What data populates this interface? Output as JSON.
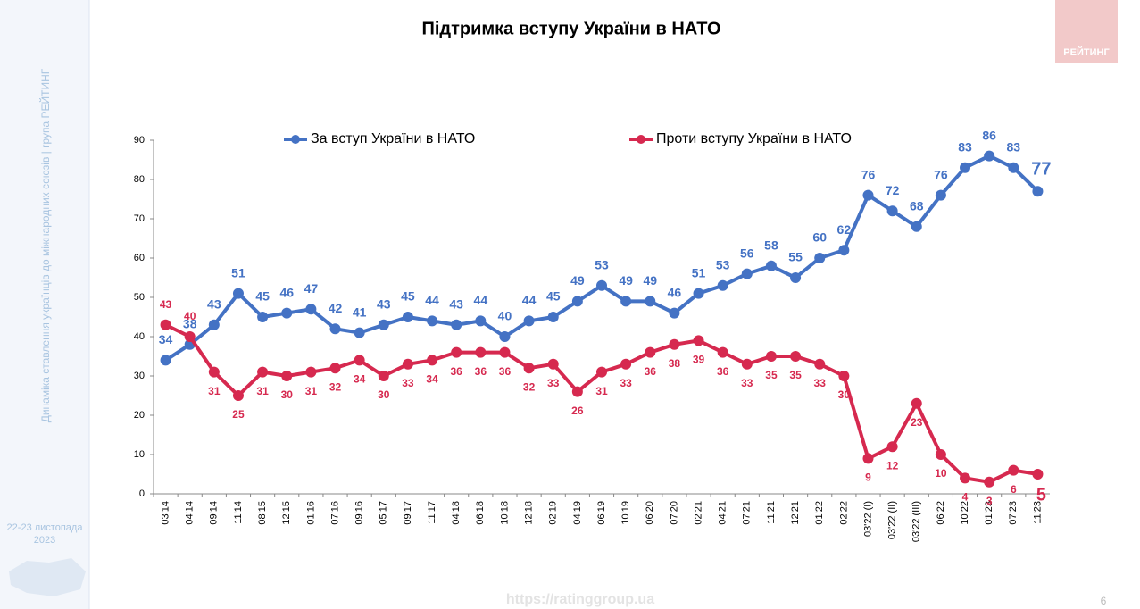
{
  "slide": {
    "side_text": "Динаміка ставлення українців до міжнародних союзів |  група РЕЙТИНГ",
    "date_lines": [
      "22-23 листопада",
      "2023"
    ],
    "logo": "РЕЙТИНГ",
    "url": "https://ratinggroup.ua",
    "page": "6"
  },
  "chart_data": {
    "type": "line",
    "title": "Підтримка вступу України в НАТО",
    "categories": [
      "03'14",
      "04'14",
      "09'14",
      "11'14",
      "08'15",
      "12'15",
      "01'16",
      "07'16",
      "09'16",
      "05'17",
      "09'17",
      "11'17",
      "04'18",
      "06'18",
      "10'18",
      "12'18",
      "02'19",
      "04'19",
      "06'19",
      "10'19",
      "06'20",
      "07'20",
      "02'21",
      "04'21",
      "07'21",
      "11'21",
      "12'21",
      "01'22",
      "02'22",
      "03'22 (I)",
      "03'22 (II)",
      "03'22 (III)",
      "06'22",
      "10'22",
      "01'23",
      "07'23",
      "11'23"
    ],
    "series": [
      {
        "name": "За вступ України в НАТО",
        "color": "#4472c4",
        "values": [
          34,
          38,
          43,
          51,
          45,
          46,
          47,
          42,
          41,
          43,
          45,
          44,
          43,
          44,
          40,
          44,
          45,
          49,
          53,
          49,
          49,
          46,
          51,
          53,
          56,
          58,
          55,
          60,
          62,
          76,
          72,
          68,
          76,
          83,
          86,
          83,
          77
        ]
      },
      {
        "name": "Проти вступу України в НАТО",
        "color": "#d6294f",
        "values": [
          43,
          40,
          31,
          25,
          31,
          30,
          31,
          32,
          34,
          30,
          33,
          34,
          36,
          36,
          36,
          32,
          33,
          26,
          31,
          33,
          36,
          38,
          39,
          36,
          33,
          35,
          35,
          33,
          30,
          9,
          12,
          23,
          10,
          4,
          3,
          6,
          5
        ]
      }
    ],
    "ylim": [
      0,
      90
    ],
    "yticks": [
      0,
      10,
      20,
      30,
      40,
      50,
      60,
      70,
      80,
      90
    ],
    "grid": false
  }
}
